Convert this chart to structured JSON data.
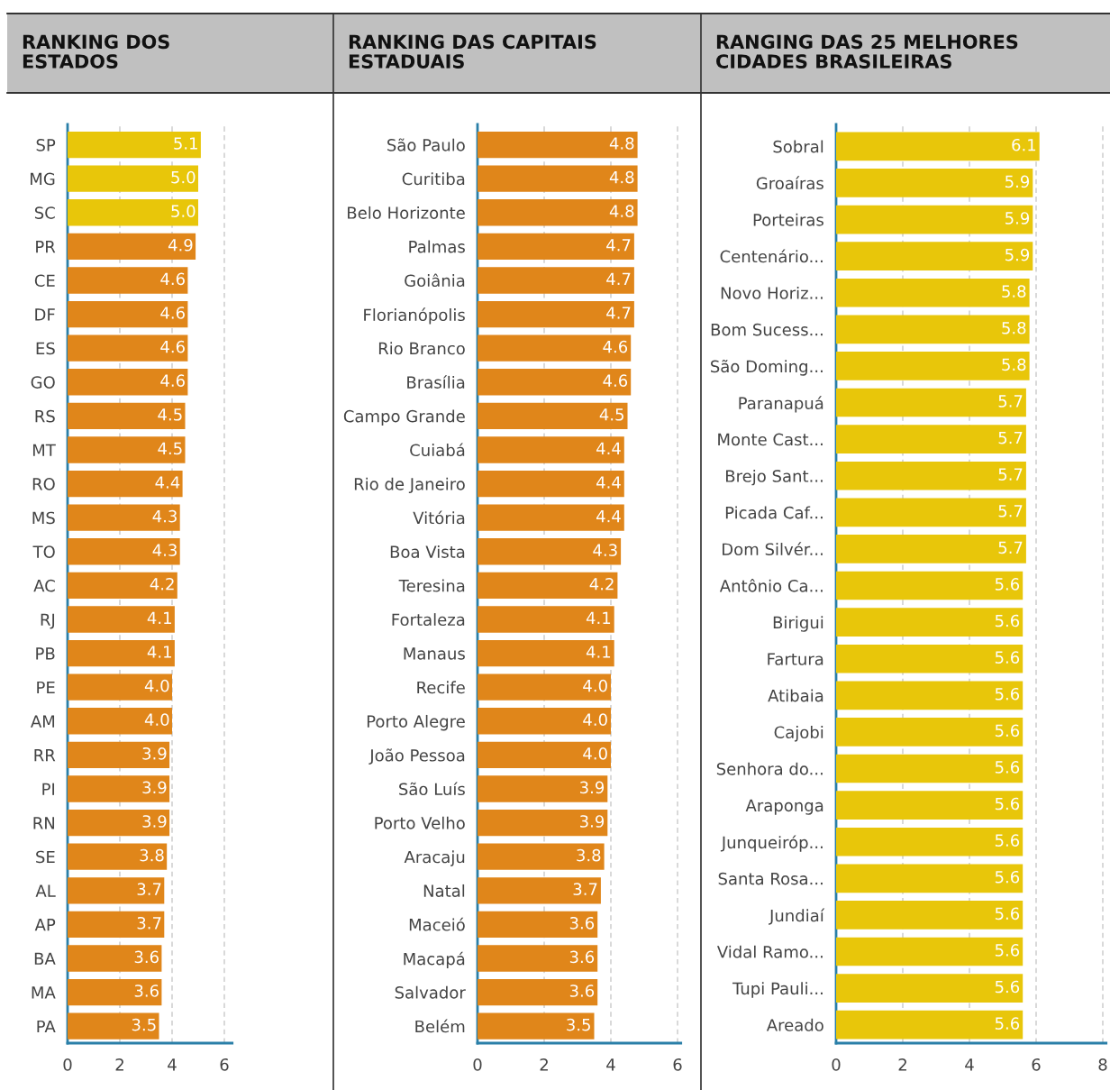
{
  "chart_data": [
    {
      "type": "bar",
      "orientation": "horizontal",
      "title": "RANKING DOS\nESTADOS",
      "categories": [
        "SP",
        "MG",
        "SC",
        "PR",
        "CE",
        "DF",
        "ES",
        "GO",
        "RS",
        "MT",
        "RO",
        "MS",
        "TO",
        "AC",
        "RJ",
        "PB",
        "PE",
        "AM",
        "RR",
        "PI",
        "RN",
        "SE",
        "AL",
        "AP",
        "BA",
        "MA",
        "PA"
      ],
      "values": [
        5.1,
        5.0,
        5.0,
        4.9,
        4.6,
        4.6,
        4.6,
        4.6,
        4.5,
        4.5,
        4.4,
        4.3,
        4.3,
        4.2,
        4.1,
        4.1,
        4.0,
        4.0,
        3.9,
        3.9,
        3.9,
        3.8,
        3.7,
        3.7,
        3.6,
        3.6,
        3.5
      ],
      "value_labels": [
        "5.1",
        "5.0",
        "5.0",
        "4.9",
        "4.6",
        "4.6",
        "4.6",
        "4.6",
        "4.5",
        "4.5",
        "4.4",
        "4.3",
        "4.3",
        "4.2",
        "4.1",
        "4.1",
        "4.0",
        "4.0",
        "3.9",
        "3.9",
        "3.9",
        "3.8",
        "3.7",
        "3.7",
        "3.6",
        "3.6",
        "3.5"
      ],
      "colors": [
        "#e8c60a",
        "#e8c60a",
        "#e8c60a",
        "#e0861a",
        "#e0861a",
        "#e0861a",
        "#e0861a",
        "#e0861a",
        "#e0861a",
        "#e0861a",
        "#e0861a",
        "#e0861a",
        "#e0861a",
        "#e0861a",
        "#e0861a",
        "#e0861a",
        "#e0861a",
        "#e0861a",
        "#e0861a",
        "#e0861a",
        "#e0861a",
        "#e0861a",
        "#e0861a",
        "#e0861a",
        "#e0861a",
        "#e0861a",
        "#e0861a"
      ],
      "xlim": [
        0,
        6.3
      ],
      "xticks": [
        0,
        2,
        4,
        6
      ],
      "grid": "x",
      "legend": false
    },
    {
      "type": "bar",
      "orientation": "horizontal",
      "title": "RANKING DAS CAPITAIS\nESTADUAIS",
      "categories": [
        "São Paulo",
        "Curitiba",
        "Belo Horizonte",
        "Palmas",
        "Goiânia",
        "Florianópolis",
        "Rio Branco",
        "Brasília",
        "Campo Grande",
        "Cuiabá",
        "Rio de Janeiro",
        "Vitória",
        "Boa Vista",
        "Teresina",
        "Fortaleza",
        "Manaus",
        "Recife",
        "Porto Alegre",
        "João Pessoa",
        "São Luís",
        "Porto Velho",
        "Aracaju",
        "Natal",
        "Maceió",
        "Macapá",
        "Salvador",
        "Belém"
      ],
      "values": [
        4.8,
        4.8,
        4.8,
        4.7,
        4.7,
        4.7,
        4.6,
        4.6,
        4.5,
        4.4,
        4.4,
        4.4,
        4.3,
        4.2,
        4.1,
        4.1,
        4.0,
        4.0,
        4.0,
        3.9,
        3.9,
        3.8,
        3.7,
        3.6,
        3.6,
        3.6,
        3.5
      ],
      "value_labels": [
        "4.8",
        "4.8",
        "4.8",
        "4.7",
        "4.7",
        "4.7",
        "4.6",
        "4.6",
        "4.5",
        "4.4",
        "4.4",
        "4.4",
        "4.3",
        "4.2",
        "4.1",
        "4.1",
        "4.0",
        "4.0",
        "4.0",
        "3.9",
        "3.9",
        "3.8",
        "3.7",
        "3.6",
        "3.6",
        "3.6",
        "3.5"
      ],
      "colors": [
        "#e0861a",
        "#e0861a",
        "#e0861a",
        "#e0861a",
        "#e0861a",
        "#e0861a",
        "#e0861a",
        "#e0861a",
        "#e0861a",
        "#e0861a",
        "#e0861a",
        "#e0861a",
        "#e0861a",
        "#e0861a",
        "#e0861a",
        "#e0861a",
        "#e0861a",
        "#e0861a",
        "#e0861a",
        "#e0861a",
        "#e0861a",
        "#e0861a",
        "#e0861a",
        "#e0861a",
        "#e0861a",
        "#e0861a",
        "#e0861a"
      ],
      "xlim": [
        0,
        6.1
      ],
      "xticks": [
        0,
        2,
        4,
        6
      ],
      "grid": "x",
      "legend": false
    },
    {
      "type": "bar",
      "orientation": "horizontal",
      "title": "RANGING DAS 25 MELHORES\nCIDADES BRASILEIRAS",
      "categories": [
        "Sobral",
        "Groaíras",
        "Porteiras",
        "Centenário...",
        "Novo Horiz...",
        "Bom Sucess...",
        "São Doming...",
        "Paranapuá",
        "Monte Cast...",
        "Brejo Sant...",
        "Picada Caf...",
        "Dom Silvér...",
        "Antônio Ca...",
        "Birigui",
        "Fartura",
        "Atibaia",
        "Cajobi",
        "Senhora do...",
        "Araponga",
        "Junqueiróp...",
        "Santa Rosa...",
        "Jundiaí",
        "Vidal Ramo...",
        "Tupi Pauli...",
        "Areado"
      ],
      "values": [
        6.1,
        5.9,
        5.9,
        5.9,
        5.8,
        5.8,
        5.8,
        5.7,
        5.7,
        5.7,
        5.7,
        5.7,
        5.6,
        5.6,
        5.6,
        5.6,
        5.6,
        5.6,
        5.6,
        5.6,
        5.6,
        5.6,
        5.6,
        5.6,
        5.6
      ],
      "value_labels": [
        "6.1",
        "5.9",
        "5.9",
        "5.9",
        "5.8",
        "5.8",
        "5.8",
        "5.7",
        "5.7",
        "5.7",
        "5.7",
        "5.7",
        "5.6",
        "5.6",
        "5.6",
        "5.6",
        "5.6",
        "5.6",
        "5.6",
        "5.6",
        "5.6",
        "5.6",
        "5.6",
        "5.6",
        "5.6"
      ],
      "colors": [
        "#e8c60a",
        "#e8c60a",
        "#e8c60a",
        "#e8c60a",
        "#e8c60a",
        "#e8c60a",
        "#e8c60a",
        "#e8c60a",
        "#e8c60a",
        "#e8c60a",
        "#e8c60a",
        "#e8c60a",
        "#e8c60a",
        "#e8c60a",
        "#e8c60a",
        "#e8c60a",
        "#e8c60a",
        "#e8c60a",
        "#e8c60a",
        "#e8c60a",
        "#e8c60a",
        "#e8c60a",
        "#e8c60a",
        "#e8c60a",
        "#e8c60a"
      ],
      "xlim": [
        0,
        8.1
      ],
      "xticks": [
        0,
        2,
        4,
        6,
        8
      ],
      "grid": "x",
      "legend": false
    }
  ]
}
